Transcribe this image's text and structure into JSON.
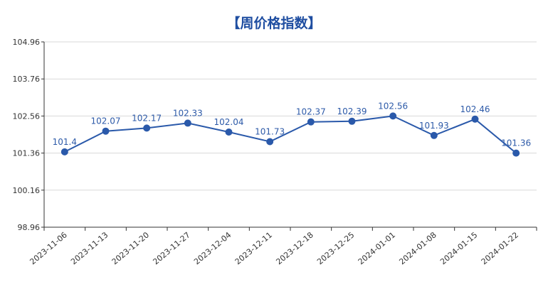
{
  "colors": {
    "series": "#2a59aa",
    "grid": "#d9d9d9",
    "axis": "#333333",
    "title": "#1f4ea1"
  },
  "chart_data": {
    "type": "line",
    "title": "【周价格指数】",
    "xlabel": "",
    "ylabel": "",
    "ylim": [
      98.96,
      104.96
    ],
    "yticks": [
      98.96,
      100.16,
      101.36,
      102.56,
      103.76,
      104.96
    ],
    "ytick_labels": [
      "98.96",
      "100.16",
      "101.36",
      "102.56",
      "103.76",
      "104.96"
    ],
    "grid": true,
    "categories": [
      "2023-11-06",
      "2023-11-13",
      "2023-11-20",
      "2023-11-27",
      "2023-12-04",
      "2023-12-11",
      "2023-12-18",
      "2023-12-25",
      "2024-01-01",
      "2024-01-08",
      "2024-01-15",
      "2024-01-22"
    ],
    "series": [
      {
        "values": [
          101.4,
          102.07,
          102.17,
          102.33,
          102.04,
          101.73,
          102.37,
          102.39,
          102.56,
          101.93,
          102.46,
          101.36
        ],
        "labels": [
          "101.4",
          "102.07",
          "102.17",
          "102.33",
          "102.04",
          "101.73",
          "102.37",
          "102.39",
          "102.56",
          "101.93",
          "102.46",
          "101.36"
        ]
      }
    ]
  }
}
